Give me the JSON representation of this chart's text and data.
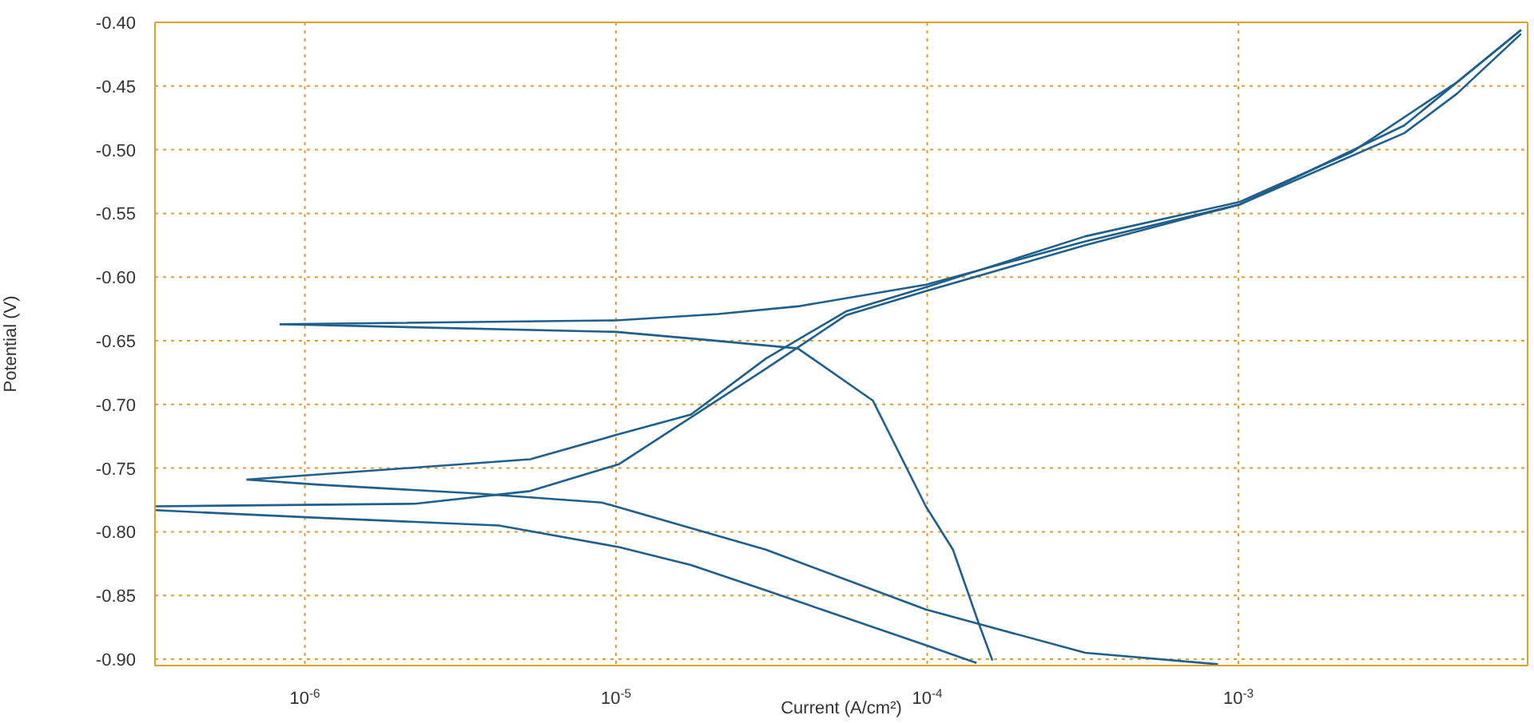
{
  "chart_data": {
    "type": "line",
    "xlabel": "Current (A/cm²)",
    "ylabel": "Potential (V)",
    "log": "x",
    "xlim": [
      3.3e-07,
      0.0085
    ],
    "ylim": [
      -0.905,
      -0.4
    ],
    "xticks": [
      {
        "value": 1e-06,
        "label": "10$^{-6}$"
      },
      {
        "value": 1e-05,
        "label": "10$^{-5}$"
      },
      {
        "value": 0.0001,
        "label": "10$^{-4}$"
      },
      {
        "value": 0.001,
        "label": "10$^{-3}$"
      }
    ],
    "yticks": [
      {
        "value": -0.4,
        "label": "-0.40"
      },
      {
        "value": -0.45,
        "label": "-0.45"
      },
      {
        "value": -0.5,
        "label": "-0.50"
      },
      {
        "value": -0.55,
        "label": "-0.55"
      },
      {
        "value": -0.6,
        "label": "-0.60"
      },
      {
        "value": -0.65,
        "label": "-0.65"
      },
      {
        "value": -0.7,
        "label": "-0.70"
      },
      {
        "value": -0.75,
        "label": "-0.75"
      },
      {
        "value": -0.8,
        "label": "-0.80"
      },
      {
        "value": -0.85,
        "label": "-0.85"
      },
      {
        "value": -0.9,
        "label": "-0.90"
      }
    ],
    "grid": true,
    "series": [
      {
        "color": "#1f5f8b",
        "x": [
          8.3e-07,
          1e-05,
          1.89e-05,
          3.84e-05,
          6.69e-05,
          9.9e-05,
          0.000121,
          0.000146,
          0.000162
        ],
        "values": [
          -0.637,
          -0.643,
          -0.649,
          -0.656,
          -0.697,
          -0.78,
          -0.814,
          -0.871,
          -0.901
        ]
      },
      {
        "color": "#1f5f8b",
        "x": [
          8.3e-07,
          1e-05,
          2.13e-05,
          3.84e-05,
          9.9e-05,
          0.000322,
          0.00101,
          0.00341,
          0.0081
        ],
        "values": [
          -0.637,
          -0.634,
          -0.629,
          -0.623,
          -0.606,
          -0.572,
          -0.543,
          -0.481,
          -0.406
        ]
      },
      {
        "color": "#1f5f8b",
        "x": [
          6.5e-07,
          1.64e-06,
          5.3e-06,
          1e-05,
          1.74e-05,
          3.03e-05,
          5.48e-05,
          9.9e-05,
          0.000322,
          0.00101,
          0.00231,
          0.00504,
          0.0081
        ],
        "values": [
          -0.759,
          -0.752,
          -0.743,
          -0.724,
          -0.708,
          -0.664,
          -0.627,
          -0.608,
          -0.568,
          -0.541,
          -0.502,
          -0.447,
          -0.406
        ]
      },
      {
        "color": "#1f5f8b",
        "x": [
          3.3e-07,
          2.26e-06,
          5.3e-06,
          1.02e-05,
          3.03e-05,
          5.48e-05,
          9.9e-05,
          0.000322,
          0.00101,
          0.00341,
          0.00504,
          0.0081
        ],
        "values": [
          -0.78,
          -0.778,
          -0.768,
          -0.747,
          -0.672,
          -0.63,
          -0.611,
          -0.575,
          -0.543,
          -0.487,
          -0.456,
          -0.409
        ]
      },
      {
        "color": "#1f5f8b",
        "x": [
          6.5e-07,
          1.11e-06,
          3.6e-06,
          9e-06,
          1.74e-05,
          3.03e-05,
          9.9e-05,
          0.000322,
          0.00086
        ],
        "values": [
          -0.759,
          -0.763,
          -0.77,
          -0.777,
          -0.797,
          -0.814,
          -0.861,
          -0.895,
          -0.904
        ]
      },
      {
        "color": "#1f5f8b",
        "x": [
          3.3e-07,
          1.11e-06,
          4.2e-06,
          1.02e-05,
          1.74e-05,
          3.03e-05,
          9.9e-05,
          0.000144
        ],
        "values": [
          -0.783,
          -0.789,
          -0.795,
          -0.812,
          -0.826,
          -0.846,
          -0.889,
          -0.903
        ]
      }
    ]
  }
}
